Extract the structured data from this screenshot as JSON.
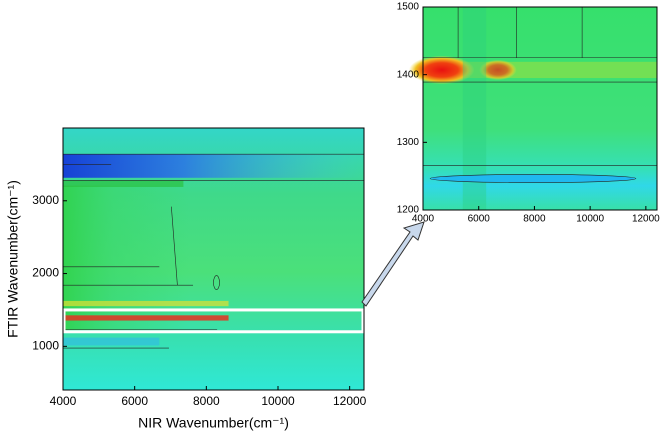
{
  "chart_data": [
    {
      "type": "contour",
      "xlabel": "NIR Wavenumber(cm⁻¹)",
      "ylabel": "FTIR Wavenumber(cm⁻¹)",
      "xlim": [
        4000,
        12400
      ],
      "xticks": [
        4000,
        6000,
        8000,
        10000,
        12000
      ],
      "ylim": [
        400,
        4000
      ],
      "yticks": [
        1000,
        2000,
        3000
      ]
    },
    {
      "type": "contour",
      "xlim": [
        4000,
        12400
      ],
      "xticks": [
        4000,
        6000,
        8000,
        10000,
        12000
      ],
      "ylim": [
        1200,
        1500
      ],
      "yticks": [
        1200,
        1300,
        1400,
        1500
      ]
    }
  ]
}
